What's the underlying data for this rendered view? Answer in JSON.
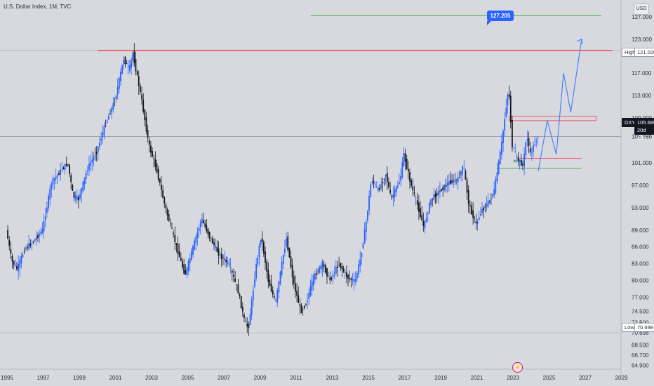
{
  "header": {
    "title": "U.S. Dollar Index, 1M, TVC",
    "currency": "USD"
  },
  "callout": {
    "value": "127.205"
  },
  "tags": {
    "high_label": "High",
    "high_value": "121.020",
    "low_label": "Low",
    "low_value": "70.698",
    "symbol": "DXY",
    "last_value": "105.686",
    "countdown": "20d 10h"
  },
  "icons": {
    "event": "lightning-bolt-icon"
  },
  "colors": {
    "up": "#2962ff",
    "down": "#131722",
    "resistance": "#f23645",
    "target": "#4caf50",
    "projection": "#3d7cff",
    "background": "#d7d9df"
  },
  "chart_data": {
    "type": "candlestick",
    "title": "U.S. Dollar Index, 1M, TVC",
    "x_ticks": [
      "1995",
      "1997",
      "1999",
      "2001",
      "2003",
      "2005",
      "2007",
      "2009",
      "2011",
      "2013",
      "2015",
      "2017",
      "2019",
      "2021",
      "2023",
      "2025",
      "2027",
      "2029"
    ],
    "y_ticks": [
      "64.900",
      "66.700",
      "68.500",
      "70.698",
      "72.500",
      "74.500",
      "77.000",
      "80.000",
      "83.000",
      "86.000",
      "89.000",
      "93.000",
      "97.000",
      "101.000",
      "105.686",
      "109.000",
      "113.000",
      "117.000",
      "121.020",
      "123.000",
      "127.000"
    ],
    "y_range": [
      64.2,
      130.0
    ],
    "series": [
      {
        "name": "DXY",
        "points": [
          [
            1995.0,
            89.0
          ],
          [
            1995.3,
            83.5
          ],
          [
            1995.6,
            82.0
          ],
          [
            1996.0,
            85.5
          ],
          [
            1996.5,
            87.0
          ],
          [
            1997.0,
            89.0
          ],
          [
            1997.5,
            97.5
          ],
          [
            1998.0,
            99.5
          ],
          [
            1998.4,
            101.0
          ],
          [
            1998.7,
            95.0
          ],
          [
            1999.0,
            94.5
          ],
          [
            1999.5,
            100.0
          ],
          [
            2000.0,
            103.0
          ],
          [
            2000.5,
            108.0
          ],
          [
            2001.0,
            112.0
          ],
          [
            2001.5,
            119.5
          ],
          [
            2001.8,
            117.5
          ],
          [
            2002.0,
            120.5
          ],
          [
            2002.5,
            112.0
          ],
          [
            2002.9,
            104.0
          ],
          [
            2003.3,
            100.0
          ],
          [
            2003.8,
            93.0
          ],
          [
            2004.2,
            88.5
          ],
          [
            2004.6,
            84.0
          ],
          [
            2004.9,
            81.0
          ],
          [
            2005.3,
            85.5
          ],
          [
            2005.8,
            91.0
          ],
          [
            2006.3,
            87.5
          ],
          [
            2006.8,
            84.5
          ],
          [
            2007.3,
            83.0
          ],
          [
            2007.8,
            78.5
          ],
          [
            2008.2,
            72.5
          ],
          [
            2008.4,
            71.5
          ],
          [
            2008.8,
            82.0
          ],
          [
            2009.1,
            88.0
          ],
          [
            2009.5,
            80.0
          ],
          [
            2009.9,
            76.0
          ],
          [
            2010.3,
            84.0
          ],
          [
            2010.5,
            87.5
          ],
          [
            2010.9,
            79.5
          ],
          [
            2011.3,
            74.5
          ],
          [
            2011.6,
            76.0
          ],
          [
            2012.0,
            80.5
          ],
          [
            2012.5,
            83.0
          ],
          [
            2012.9,
            80.0
          ],
          [
            2013.4,
            83.0
          ],
          [
            2013.9,
            80.5
          ],
          [
            2014.3,
            79.8
          ],
          [
            2014.6,
            84.0
          ],
          [
            2014.9,
            90.0
          ],
          [
            2015.2,
            98.0
          ],
          [
            2015.6,
            96.0
          ],
          [
            2016.0,
            99.0
          ],
          [
            2016.3,
            94.5
          ],
          [
            2016.8,
            98.0
          ],
          [
            2017.0,
            102.5
          ],
          [
            2017.4,
            97.0
          ],
          [
            2017.8,
            93.0
          ],
          [
            2018.1,
            89.5
          ],
          [
            2018.5,
            94.5
          ],
          [
            2019.0,
            96.0
          ],
          [
            2019.5,
            97.5
          ],
          [
            2020.0,
            98.0
          ],
          [
            2020.3,
            100.5
          ],
          [
            2020.6,
            93.5
          ],
          [
            2021.0,
            90.0
          ],
          [
            2021.3,
            92.5
          ],
          [
            2021.7,
            94.0
          ],
          [
            2022.0,
            96.0
          ],
          [
            2022.4,
            104.0
          ],
          [
            2022.7,
            112.0
          ],
          [
            2022.8,
            114.5
          ],
          [
            2023.0,
            104.0
          ],
          [
            2023.3,
            101.5
          ],
          [
            2023.6,
            100.5
          ],
          [
            2023.8,
            106.0
          ],
          [
            2024.0,
            102.5
          ],
          [
            2024.4,
            105.686
          ]
        ]
      }
    ],
    "annotations": {
      "resistance_level": 121.02,
      "target_level": 127.205,
      "resistance_zone": [
        108.5,
        109.3
      ],
      "support_level": 100.0,
      "support_zone_top": 101.8,
      "projection_path": [
        [
          2024.4,
          99.5
        ],
        [
          2024.9,
          108.5
        ],
        [
          2025.4,
          102.5
        ],
        [
          2025.8,
          117.0
        ],
        [
          2026.2,
          110.0
        ],
        [
          2026.8,
          123.0
        ]
      ]
    }
  }
}
